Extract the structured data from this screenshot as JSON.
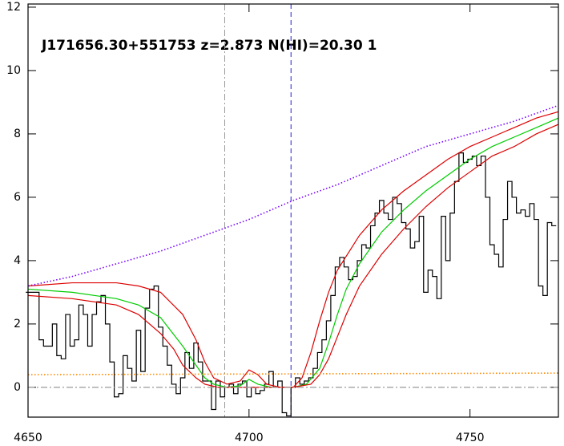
{
  "chart_data": {
    "type": "line",
    "title": "J171656.30+551753 z=2.873 N(HI)=20.30 1",
    "xlim": [
      4650,
      4770
    ],
    "ylim": [
      -0.94,
      12.1
    ],
    "xticks": [
      4650,
      4700,
      4750
    ],
    "yticks": [
      0,
      2,
      4,
      6,
      8,
      10,
      12
    ],
    "series": [
      {
        "color": "#000000",
        "style": "step",
        "x": [
          4650,
          4651,
          4652,
          4653,
          4654,
          4655,
          4656,
          4657,
          4658,
          4659,
          4660,
          4661,
          4662,
          4663,
          4664,
          4665,
          4666,
          4667,
          4668,
          4669,
          4670,
          4671,
          4672,
          4673,
          4674,
          4675,
          4676,
          4677,
          4678,
          4679,
          4680,
          4681,
          4682,
          4683,
          4684,
          4685,
          4686,
          4687,
          4688,
          4689,
          4690,
          4691,
          4692,
          4693,
          4694,
          4695,
          4696,
          4697,
          4698,
          4699,
          4700,
          4701,
          4702,
          4703,
          4704,
          4705,
          4706,
          4707,
          4708,
          4709,
          4710,
          4711,
          4712,
          4713,
          4714,
          4715,
          4716,
          4717,
          4718,
          4719,
          4720,
          4721,
          4722,
          4723,
          4724,
          4725,
          4726,
          4727,
          4728,
          4729,
          4730,
          4731,
          4732,
          4733,
          4734,
          4735,
          4736,
          4737,
          4738,
          4739,
          4740,
          4741,
          4742,
          4743,
          4744,
          4745,
          4746,
          4747,
          4748,
          4749,
          4750,
          4751,
          4752,
          4753,
          4754,
          4755,
          4756,
          4757,
          4758,
          4759,
          4760,
          4761,
          4762,
          4763,
          4764,
          4765,
          4766,
          4767,
          4768,
          4769
        ],
        "values": [
          3.0,
          3.0,
          3.0,
          1.5,
          1.3,
          1.3,
          2.0,
          1.0,
          0.9,
          2.3,
          1.3,
          1.5,
          2.6,
          2.3,
          1.3,
          2.3,
          2.7,
          2.9,
          2.0,
          0.8,
          -0.3,
          -0.2,
          1.0,
          0.6,
          0.2,
          1.8,
          0.5,
          2.5,
          3.1,
          3.2,
          1.9,
          1.3,
          0.7,
          0.1,
          -0.2,
          0.3,
          1.1,
          0.6,
          1.4,
          0.8,
          0.2,
          0.2,
          -0.7,
          0.2,
          -0.3,
          0.0,
          0.1,
          -0.2,
          0.1,
          0.2,
          -0.3,
          0.0,
          -0.2,
          -0.1,
          0.1,
          0.5,
          0.0,
          0.2,
          -0.8,
          -0.9,
          0.0,
          0.3,
          0.1,
          0.2,
          0.3,
          0.6,
          1.1,
          1.5,
          2.1,
          2.9,
          3.8,
          4.1,
          3.8,
          3.4,
          3.5,
          4.0,
          4.5,
          4.4,
          5.1,
          5.5,
          5.9,
          5.5,
          5.3,
          6.0,
          5.8,
          5.2,
          5.0,
          4.4,
          4.6,
          5.4,
          3.0,
          3.7,
          3.5,
          2.8,
          5.4,
          4.0,
          5.5,
          6.5,
          7.4,
          7.1,
          7.2,
          7.3,
          7.0,
          7.3,
          6.0,
          4.5,
          4.2,
          3.8,
          5.3,
          6.5,
          6.0,
          5.5,
          5.6,
          5.4,
          5.8,
          5.3,
          3.2,
          2.9,
          5.2,
          5.1
        ]
      },
      {
        "color": "#00cc00",
        "style": "solid",
        "x": [
          4650,
          4660,
          4670,
          4675,
          4680,
          4685,
          4688,
          4690,
          4692,
          4695,
          4698,
          4700,
          4702,
          4705,
          4710,
          4713,
          4716,
          4718,
          4720,
          4722,
          4725,
          4730,
          4735,
          4740,
          4745,
          4750,
          4755,
          4760,
          4765,
          4770
        ],
        "values": [
          3.1,
          3.0,
          2.8,
          2.6,
          2.2,
          1.3,
          0.7,
          0.3,
          0.1,
          0.0,
          0.05,
          0.25,
          0.1,
          0.0,
          0.0,
          0.1,
          0.6,
          1.4,
          2.3,
          3.1,
          3.9,
          4.9,
          5.6,
          6.2,
          6.7,
          7.2,
          7.6,
          7.9,
          8.2,
          8.5
        ]
      },
      {
        "color": "#dd0000",
        "style": "solid",
        "x": [
          4650,
          4660,
          4670,
          4675,
          4680,
          4685,
          4688,
          4690,
          4692,
          4695,
          4698,
          4700,
          4702,
          4704,
          4707,
          4710,
          4712,
          4714,
          4716,
          4718,
          4720,
          4725,
          4730,
          4735,
          4740,
          4745,
          4750,
          4755,
          4760,
          4765,
          4770
        ],
        "values": [
          3.2,
          3.3,
          3.3,
          3.2,
          3.0,
          2.3,
          1.5,
          0.8,
          0.3,
          0.1,
          0.2,
          0.55,
          0.4,
          0.1,
          0.0,
          0.0,
          0.3,
          1.1,
          2.1,
          3.0,
          3.7,
          4.8,
          5.6,
          6.2,
          6.7,
          7.2,
          7.6,
          7.9,
          8.2,
          8.5,
          8.7
        ]
      },
      {
        "color": "#dd0000",
        "style": "solid",
        "x": [
          4650,
          4660,
          4670,
          4675,
          4680,
          4683,
          4685,
          4688,
          4690,
          4693,
          4710,
          4714,
          4716,
          4718,
          4720,
          4722,
          4725,
          4730,
          4735,
          4740,
          4745,
          4750,
          4755,
          4760,
          4765,
          4770
        ],
        "values": [
          2.9,
          2.8,
          2.6,
          2.3,
          1.7,
          1.2,
          0.7,
          0.3,
          0.1,
          0.0,
          0.0,
          0.1,
          0.4,
          0.9,
          1.6,
          2.3,
          3.2,
          4.2,
          5.0,
          5.7,
          6.3,
          6.8,
          7.3,
          7.6,
          8.0,
          8.3
        ]
      },
      {
        "color": "#7700ff",
        "style": "dotted",
        "x": [
          4650,
          4660,
          4670,
          4680,
          4690,
          4700,
          4710,
          4720,
          4730,
          4740,
          4750,
          4760,
          4770
        ],
        "values": [
          3.2,
          3.5,
          3.9,
          4.3,
          4.8,
          5.3,
          5.9,
          6.4,
          7.0,
          7.6,
          8.0,
          8.4,
          8.9
        ]
      },
      {
        "color": "#ff8800",
        "style": "dotted",
        "x": [
          4650,
          4770
        ],
        "values": [
          0.4,
          0.45
        ]
      },
      {
        "color": "#999999",
        "style": "dashdot",
        "x": [
          4650,
          4770
        ],
        "values": [
          0,
          0
        ]
      }
    ],
    "vlines": [
      {
        "x": 4694.5,
        "color": "#999999",
        "style": "dashdot"
      },
      {
        "x": 4709.5,
        "color": "#2222cc",
        "style": "dashed"
      }
    ]
  }
}
